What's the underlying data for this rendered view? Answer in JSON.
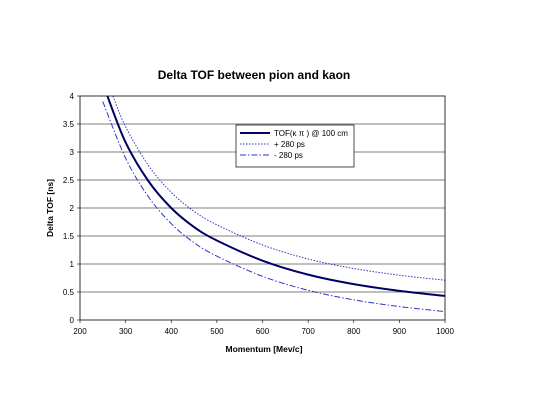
{
  "chart_data": {
    "type": "line",
    "title": "Delta TOF between  pion and kaon",
    "xlabel": "Momentum [Mev/c]",
    "ylabel": "Delta TOF [ns]",
    "xlim": [
      200,
      1000
    ],
    "ylim": [
      0,
      4
    ],
    "x_ticks": [
      "200",
      "300",
      "400",
      "500",
      "600",
      "700",
      "800",
      "900",
      "1000"
    ],
    "y_ticks": [
      "0",
      "0.5",
      "1",
      "1.5",
      "2",
      "2.5",
      "3",
      "3.5",
      "4"
    ],
    "grid": "horizontal",
    "legend_position": "upper-center",
    "series": [
      {
        "name": "TOF(κ π ) @ 100 cm",
        "style": "solid",
        "color": "#000066",
        "x": [
          260,
          300,
          350,
          400,
          450,
          500,
          600,
          700,
          800,
          900,
          1000
        ],
        "y": [
          4.0,
          3.17,
          2.48,
          2.0,
          1.66,
          1.42,
          1.06,
          0.81,
          0.64,
          0.52,
          0.43
        ]
      },
      {
        "name": "+ 280 ps",
        "style": "dotted",
        "color": "#3333cc",
        "x": [
          272,
          300,
          350,
          400,
          450,
          500,
          600,
          700,
          800,
          900,
          1000
        ],
        "y": [
          4.0,
          3.45,
          2.76,
          2.28,
          1.94,
          1.7,
          1.34,
          1.09,
          0.92,
          0.8,
          0.71
        ]
      },
      {
        "name": "- 280 ps",
        "style": "dashdot",
        "color": "#3333cc",
        "x": [
          250,
          300,
          350,
          400,
          450,
          500,
          600,
          700,
          800,
          900,
          1000
        ],
        "y": [
          3.9,
          2.89,
          2.2,
          1.72,
          1.38,
          1.14,
          0.78,
          0.53,
          0.36,
          0.24,
          0.15
        ]
      }
    ]
  }
}
